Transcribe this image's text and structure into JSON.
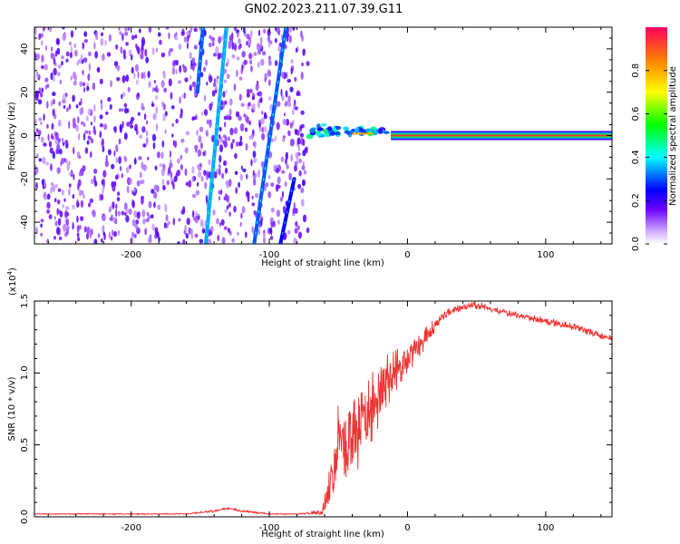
{
  "title": "GN02.2023.211.07.39.G11",
  "spectrogram": {
    "xlabel": "Height of straight line (km)",
    "ylabel": "Frequency (Hz)",
    "xlim": [
      -270,
      148
    ],
    "ylim": [
      -50,
      50
    ],
    "xticks": [
      -200,
      -100,
      0,
      100
    ],
    "yticks": [
      -40,
      -20,
      0,
      20,
      40
    ],
    "colorbar": {
      "label": "Normalized spectral amplitude",
      "range": [
        0,
        1
      ],
      "ticks": [
        "0.0",
        "0.2",
        "0.4",
        "0.6",
        "0.8"
      ]
    }
  },
  "chart_data": [
    {
      "type": "heatmap",
      "title": "GN02.2023.211.07.39.G11",
      "xlabel": "Height of straight line (km)",
      "ylabel": "Frequency (Hz)",
      "xlim": [
        -270,
        148
      ],
      "ylim": [
        -50,
        50
      ],
      "zlabel": "Normalized spectral amplitude",
      "zlim": [
        0,
        1
      ],
      "features": [
        {
          "name": "noise-field",
          "x_range": [
            -270,
            -72
          ],
          "amplitude": 0.15
        },
        {
          "name": "streak-1",
          "x": [
            -148,
            -152
          ],
          "y": [
            50,
            20
          ],
          "amplitude": 0.3
        },
        {
          "name": "streak-2",
          "x": [
            -131,
            -146
          ],
          "y": [
            50,
            -50
          ],
          "amplitude": 0.35
        },
        {
          "name": "streak-3",
          "x": [
            -88,
            -111
          ],
          "y": [
            50,
            -50
          ],
          "amplitude": 0.3
        },
        {
          "name": "streak-4",
          "x": [
            -82,
            -92
          ],
          "y": [
            -20,
            -50
          ],
          "amplitude": 0.25
        },
        {
          "name": "carrier-line",
          "x_range": [
            -70,
            148
          ],
          "frequency": 0,
          "amplitude": 0.95
        }
      ]
    },
    {
      "type": "line",
      "title": "",
      "xlabel": "Height of straight line (km)",
      "ylabel": "SNR (10 * v/v)",
      "scale_label": "(x10",
      "scale_exponent": "4",
      "scale_suffix": ")",
      "xlim": [
        -270,
        148
      ],
      "ylim": [
        0,
        1.5
      ],
      "xticks": [
        -200,
        -100,
        0,
        100
      ],
      "yticks": [
        "0.0",
        "0.5",
        "1.0",
        "1.5"
      ],
      "series": [
        {
          "name": "SNR",
          "color": "#ee3333",
          "x": [
            -270,
            -240,
            -200,
            -160,
            -140,
            -130,
            -120,
            -100,
            -80,
            -62,
            -55,
            -50,
            -45,
            -40,
            -35,
            -30,
            -25,
            -20,
            -15,
            -10,
            -5,
            0,
            5,
            10,
            15,
            20,
            25,
            30,
            40,
            50,
            60,
            70,
            80,
            100,
            120,
            140,
            148
          ],
          "values": [
            0.02,
            0.02,
            0.02,
            0.02,
            0.04,
            0.06,
            0.04,
            0.02,
            0.02,
            0.03,
            0.25,
            0.5,
            0.45,
            0.5,
            0.6,
            0.7,
            0.75,
            0.85,
            0.95,
            1.0,
            1.05,
            1.1,
            1.15,
            1.2,
            1.28,
            1.33,
            1.4,
            1.43,
            1.46,
            1.47,
            1.45,
            1.42,
            1.4,
            1.36,
            1.32,
            1.26,
            1.24
          ],
          "jitter": [
            0.004,
            0.004,
            0.004,
            0.004,
            0.01,
            0.01,
            0.008,
            0.004,
            0.004,
            0.02,
            0.22,
            0.3,
            0.3,
            0.3,
            0.28,
            0.28,
            0.26,
            0.22,
            0.2,
            0.16,
            0.13,
            0.12,
            0.1,
            0.08,
            0.06,
            0.05,
            0.04,
            0.035,
            0.03,
            0.03,
            0.025,
            0.025,
            0.025,
            0.025,
            0.025,
            0.025,
            0.025
          ]
        }
      ]
    }
  ]
}
